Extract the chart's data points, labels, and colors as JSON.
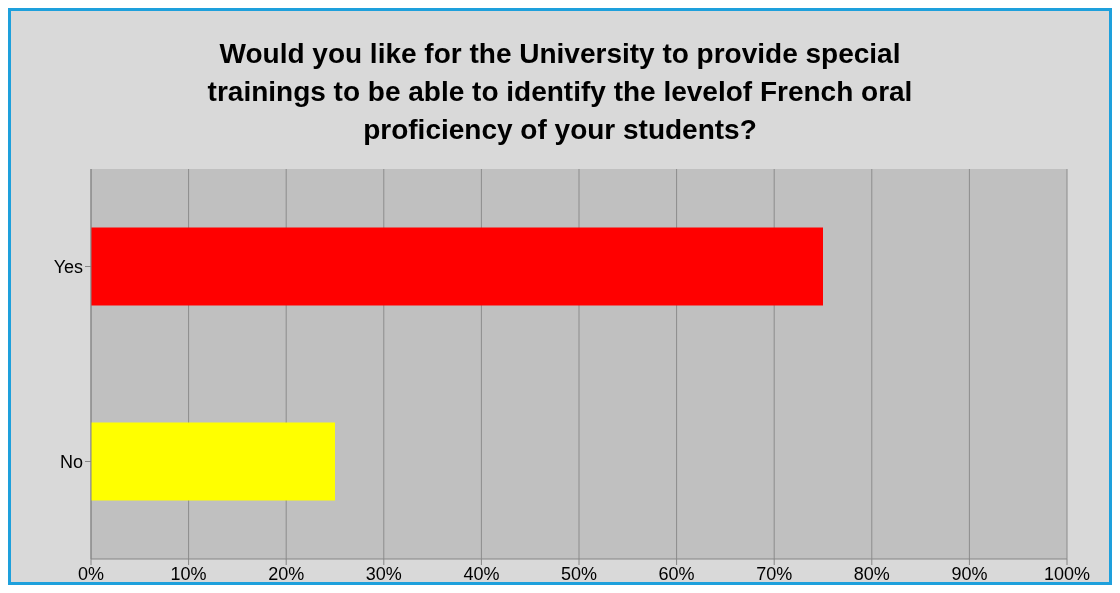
{
  "chart_data": {
    "type": "bar",
    "orientation": "horizontal",
    "title": "Would you like for the University to provide special trainings to be able to identify the levelof French oral proficiency of your students?",
    "categories": [
      "Yes",
      "No"
    ],
    "values": [
      75,
      25
    ],
    "colors": [
      "#ff0000",
      "#ffff00"
    ],
    "xlim": [
      0,
      100
    ],
    "xticks": [
      {
        "value": 0,
        "label": "0%"
      },
      {
        "value": 10,
        "label": "10%"
      },
      {
        "value": 20,
        "label": "20%"
      },
      {
        "value": 30,
        "label": "30%"
      },
      {
        "value": 40,
        "label": "40%"
      },
      {
        "value": 50,
        "label": "50%"
      },
      {
        "value": 60,
        "label": "60%"
      },
      {
        "value": 70,
        "label": "70%"
      },
      {
        "value": 80,
        "label": "80%"
      },
      {
        "value": 90,
        "label": "90%"
      },
      {
        "value": 100,
        "label": "100%"
      }
    ],
    "grid": "x"
  }
}
